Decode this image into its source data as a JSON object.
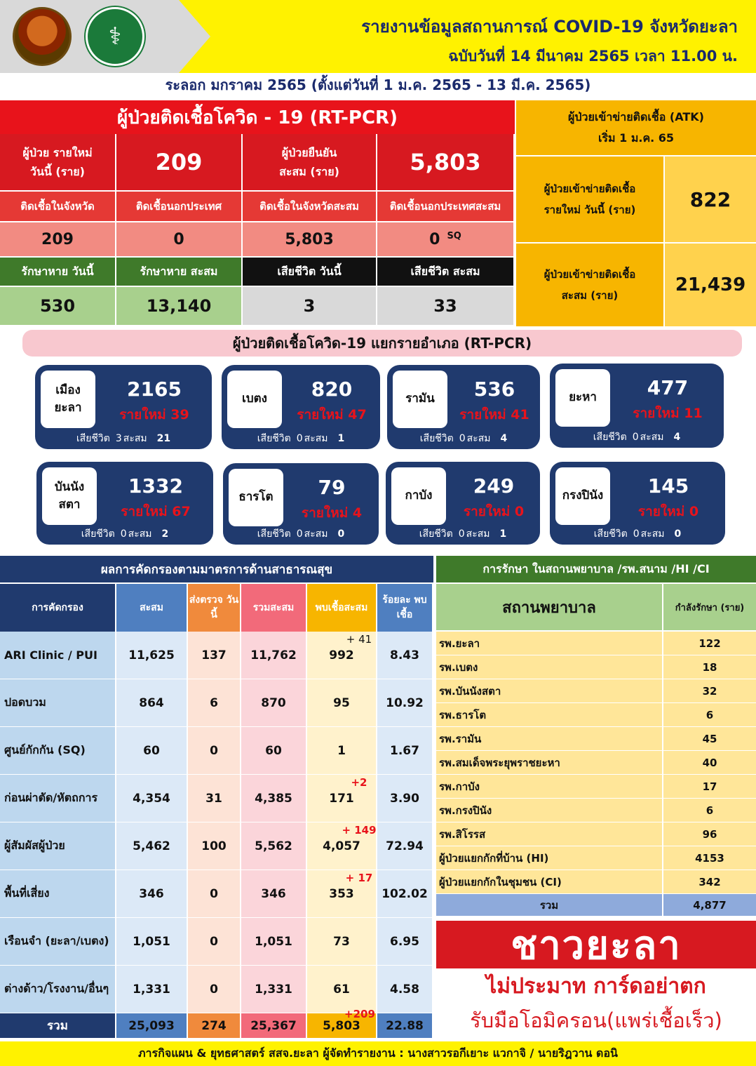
{
  "header": {
    "title": "รายงานข้อมูลสถานการณ์ COVID-19 จังหวัดยะลา",
    "edition": "ฉบับวันที่ 14 มีนาคม 2565 เวลา 11.00 น.",
    "wave": "ระลอก มกราคม 2565 (ตั้งแต่วันที่ 1 ม.ค. 2565  -  13 มี.ค. 2565)"
  },
  "rtpcr": {
    "title": "ผู้ป่วยติดเชื้อโควิด - 19 (RT-PCR)",
    "new_label_1": "ผู้ป่วย รายใหม่",
    "new_label_2": "วันนี้ (ราย)",
    "new_value": "209",
    "cum_label_1": "ผู้ป่วยยืนยัน",
    "cum_label_2": "สะสม (ราย)",
    "cum_value": "5,803",
    "local_label": "ติดเชื้อในจังหวัด",
    "abroad_label": "ติดเชื้อนอกประเทศ",
    "local_cum_label": "ติดเชื้อในจังหวัดสะสม",
    "abroad_cum_label": "ติดเชื้อนอกประเทศสะสม",
    "local_value": "209",
    "abroad_value": "0",
    "local_cum_value": "5,803",
    "abroad_cum_value": "0",
    "abroad_cum_note": "SQ",
    "recov_today_label": "รักษาหาย วันนี้",
    "recov_cum_label": "รักษาหาย สะสม",
    "death_today_label": "เสียชีวิต วันนี้",
    "death_cum_label": "เสียชีวิต สะสม",
    "recov_today": "530",
    "recov_cum": "13,140",
    "death_today": "3",
    "death_cum": "33"
  },
  "atk": {
    "title_1": "ผู้ป่วยเข้าข่ายติดเชื้อ (ATK)",
    "title_2": "เริ่ม 1 ม.ค. 65",
    "new_label_1": "ผู้ป่วยเข้าข่ายติดเชื้อ",
    "new_label_2": "รายใหม่ วันนี้ (ราย)",
    "new_value": "822",
    "cum_label_1": "ผู้ป่วยเข้าข่ายติดเชื้อ",
    "cum_label_2": "สะสม (ราย)",
    "cum_value": "21,439"
  },
  "districts": {
    "title": "ผู้ป่วยติดเชื้อโควิด-19 แยกรายอำเภอ (RT-PCR)",
    "death_label": "เสียชีวิต",
    "cum_label": "สะสม",
    "items": [
      {
        "name1": "เมือง",
        "name2": "ยะลา",
        "total": "2165",
        "new": "รายใหม่ 39",
        "death": "3",
        "death_cum": "21"
      },
      {
        "name1": "เบตง",
        "name2": "",
        "total": "820",
        "new": "รายใหม่ 47",
        "death": "0",
        "death_cum": "1"
      },
      {
        "name1": "รามัน",
        "name2": "",
        "total": "536",
        "new": "รายใหม่ 41",
        "death": "0",
        "death_cum": "4"
      },
      {
        "name1": "ยะหา",
        "name2": "",
        "total": "477",
        "new": "รายใหม่ 11",
        "death": "0",
        "death_cum": "4"
      },
      {
        "name1": "บันนัง",
        "name2": "สตา",
        "total": "1332",
        "new": "รายใหม่ 67",
        "death": "0",
        "death_cum": "2"
      },
      {
        "name1": "ธารโต",
        "name2": "",
        "total": "79",
        "new": "รายใหม่ 4",
        "death": "0",
        "death_cum": "0"
      },
      {
        "name1": "กาบัง",
        "name2": "",
        "total": "249",
        "new": "รายใหม่ 0",
        "death": "0",
        "death_cum": "1"
      },
      {
        "name1": "กรงปินัง",
        "name2": "",
        "total": "145",
        "new": "รายใหม่ 0",
        "death": "0",
        "death_cum": "0"
      }
    ]
  },
  "screening": {
    "title": "ผลการคัดกรองตามมาตรการด้านสาธารณสุข",
    "headers": [
      "การคัดกรอง",
      "สะสม",
      "ส่งตรวจ วันนี้",
      "รวมสะสม",
      "พบเชื้อสะสม",
      "ร้อยละ พบเชื้อ"
    ],
    "rows": [
      {
        "name": "ARI Clinic / PUI",
        "cum": "11,625",
        "today": "137",
        "total": "11,762",
        "found": "992",
        "plus": "+ 41",
        "pct": "8.43"
      },
      {
        "name": "ปอดบวม",
        "cum": "864",
        "today": "6",
        "total": "870",
        "found": "95",
        "plus": "",
        "pct": "10.92"
      },
      {
        "name": "ศูนย์กักกัน (SQ)",
        "cum": "60",
        "today": "0",
        "total": "60",
        "found": "1",
        "plus": "",
        "pct": "1.67"
      },
      {
        "name": "ก่อนผ่าตัด/หัตถการ",
        "cum": "4,354",
        "today": "31",
        "total": "4,385",
        "found": "171",
        "plus": "+2",
        "pct": "3.90"
      },
      {
        "name": "ผู้สัมผัสผู้ป่วย",
        "cum": "5,462",
        "today": "100",
        "total": "5,562",
        "found": "4,057",
        "plus": "+ 149",
        "pct": "72.94"
      },
      {
        "name": "พื้นที่เสี่ยง",
        "cum": "346",
        "today": "0",
        "total": "346",
        "found": "353",
        "plus": "+ 17",
        "pct": "102.02"
      },
      {
        "name": "เรือนจำ (ยะลา/เบตง)",
        "cum": "1,051",
        "today": "0",
        "total": "1,051",
        "found": "73",
        "plus": "",
        "pct": "6.95"
      },
      {
        "name": "ต่างด้าว/โรงงาน/อื่นๆ",
        "cum": "1,331",
        "today": "0",
        "total": "1,331",
        "found": "61",
        "plus": "",
        "pct": "4.58"
      }
    ],
    "total": {
      "name": "รวม",
      "cum": "25,093",
      "today": "274",
      "total": "25,367",
      "found": "5,803",
      "plus": "+209",
      "pct": "22.88"
    }
  },
  "hospital": {
    "title": "การรักษา ในสถานพยาบาล /รพ.สนาม /HI /CI",
    "col1": "สถานพยาบาล",
    "col2": "กำลังรักษา (ราย)",
    "rows": [
      {
        "name": "รพ.ยะลา",
        "value": "122"
      },
      {
        "name": "รพ.เบตง",
        "value": "18"
      },
      {
        "name": "รพ.บันนังสตา",
        "value": "32"
      },
      {
        "name": "รพ.ธารโต",
        "value": "6"
      },
      {
        "name": "รพ.รามัน",
        "value": "45"
      },
      {
        "name": "รพ.สมเด็จพระยุพราชยะหา",
        "value": "40"
      },
      {
        "name": "รพ.กาบัง",
        "value": "17"
      },
      {
        "name": "รพ.กรงปินัง",
        "value": "6"
      },
      {
        "name": "รพ.สิโรรส",
        "value": "96"
      },
      {
        "name": "ผู้ป่วยแยกกักที่บ้าน (HI)",
        "value": "4153"
      },
      {
        "name": "ผู้ป่วยแยกกักในชุมชน (CI)",
        "value": "342"
      }
    ],
    "total_label": "รวม",
    "total_value": "4,877"
  },
  "slogan": {
    "line1": "ชาวยะลา",
    "line2": "ไม่ประมาท การ์ดอย่าตก",
    "line3": "รับมือโอมิครอน(แพร่เชื้อเร็ว)"
  },
  "footer": "ภารกิจแผน & ยุทธศาสตร์ สสจ.ยะลา    ผู้จัดทำรายงาน : นางสาวรอกีเยาะ แวกาจิ / นายริฎวาน ดอนิ",
  "icons": {
    "logo1": "provincial-seal-icon",
    "logo2": "ministry-of-public-health-seal-icon"
  },
  "colors": {
    "red": "#d71920",
    "navy": "#203a6e",
    "yellow": "#fff200",
    "green": "#3f7a2a",
    "orange": "#f7b500"
  }
}
